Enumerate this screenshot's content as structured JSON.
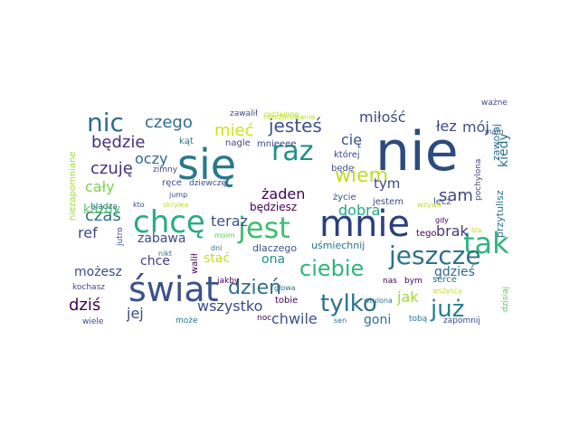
{
  "words": [
    {
      "text": "nie",
      "color": "#2c4b7e"
    },
    {
      "text": "się",
      "color": "#2a788e"
    },
    {
      "text": "mnie",
      "color": "#2b3f80"
    },
    {
      "text": "jest",
      "color": "#40bd72"
    },
    {
      "text": "świat",
      "color": "#3b528b"
    },
    {
      "text": "chcę",
      "color": "#27ad81"
    },
    {
      "text": "tak",
      "color": "#31b57b"
    },
    {
      "text": "jeszcze",
      "color": "#2c738e"
    },
    {
      "text": "raz",
      "color": "#21918c"
    },
    {
      "text": "nic",
      "color": "#2e6d8e"
    },
    {
      "text": "tylko",
      "color": "#2c728e"
    },
    {
      "text": "już",
      "color": "#27808e"
    },
    {
      "text": "ciebie",
      "color": "#31b57b"
    },
    {
      "text": "wiem",
      "color": "#bddf26"
    },
    {
      "text": "dzień",
      "color": "#2d708e"
    },
    {
      "text": "czego",
      "color": "#2e6e8e"
    },
    {
      "text": "jesteś",
      "color": "#3b528b"
    },
    {
      "text": "będzie",
      "color": "#472f7d"
    },
    {
      "text": "czuję",
      "color": "#46327e"
    },
    {
      "text": "mieć",
      "color": "#d0e11c"
    },
    {
      "text": "sam",
      "color": "#3f4788"
    },
    {
      "text": "miłość",
      "color": "#3e4a89"
    },
    {
      "text": "łez",
      "color": "#3f4788"
    },
    {
      "text": "mój",
      "color": "#3b528b"
    },
    {
      "text": "cię",
      "color": "#3b528b"
    },
    {
      "text": "oczy",
      "color": "#2f6b8e"
    },
    {
      "text": "cały",
      "color": "#7ad151"
    },
    {
      "text": "czas",
      "color": "#2c728e"
    },
    {
      "text": "teraz",
      "color": "#3b528b"
    },
    {
      "text": "żaden",
      "color": "#440154"
    },
    {
      "text": "dobra",
      "color": "#22a884"
    },
    {
      "text": "tym",
      "color": "#404688"
    },
    {
      "text": "brak",
      "color": "#443983"
    },
    {
      "text": "kiedy",
      "color": "#2c728e"
    },
    {
      "text": "każdy",
      "color": "#5ec962"
    },
    {
      "text": "ref",
      "color": "#3e4989"
    },
    {
      "text": "zabawa",
      "color": "#3e4989"
    },
    {
      "text": "chce",
      "color": "#433e85"
    },
    {
      "text": "stać",
      "color": "#c2df23"
    },
    {
      "text": "ona",
      "color": "#20928c"
    },
    {
      "text": "możesz",
      "color": "#3e4a89"
    },
    {
      "text": "dziś",
      "color": "#440154"
    },
    {
      "text": "jej",
      "color": "#3e4989"
    },
    {
      "text": "wszystko",
      "color": "#3e4989"
    },
    {
      "text": "chwile",
      "color": "#3b528b"
    },
    {
      "text": "goni",
      "color": "#2c728e"
    },
    {
      "text": "jak",
      "color": "#9fda3a"
    },
    {
      "text": "gdzieś",
      "color": "#31688e"
    },
    {
      "text": "uśmiechnij",
      "color": "#2c728e"
    },
    {
      "text": "dlaczego",
      "color": "#3b528b"
    },
    {
      "text": "będziesz",
      "color": "#440154"
    },
    {
      "text": "zapomnij",
      "color": "#3e4a89"
    },
    {
      "text": "mnieeee",
      "color": "#3e4989"
    },
    {
      "text": "której",
      "color": "#3e4989"
    },
    {
      "text": "będę",
      "color": "#3b528b"
    },
    {
      "text": "życie",
      "color": "#3b528b"
    },
    {
      "text": "jestem",
      "color": "#3e4989"
    },
    {
      "text": "lecz",
      "color": "#3e4989"
    },
    {
      "text": "zawołaj",
      "color": "#2c728e"
    },
    {
      "text": "pochylona",
      "color": "#3e4989"
    },
    {
      "text": "przytulisz",
      "color": "#2c728e"
    },
    {
      "text": "tego",
      "color": "#440154"
    },
    {
      "text": "gdy",
      "color": "#440154"
    },
    {
      "text": "serce",
      "color": "#2c728e"
    },
    {
      "text": "bym",
      "color": "#440154"
    },
    {
      "text": "nas",
      "color": "#440154"
    },
    {
      "text": "tobie",
      "color": "#440154"
    },
    {
      "text": "tobą",
      "color": "#2c728e"
    },
    {
      "text": "noc",
      "color": "#440154"
    },
    {
      "text": "sen",
      "color": "#2c728e"
    },
    {
      "text": "dzisiaj",
      "color": "#5ec962"
    },
    {
      "text": "wszyscy",
      "color": "#bddf26"
    },
    {
      "text": "wtulona",
      "color": "#2c728e"
    },
    {
      "text": "głowa",
      "color": "#2c728e"
    },
    {
      "text": "jakby",
      "color": "#440154"
    },
    {
      "text": "walił",
      "color": "#440154"
    },
    {
      "text": "moim",
      "color": "#5ec962"
    },
    {
      "text": "dni",
      "color": "#2c728e"
    },
    {
      "text": "nikt",
      "color": "#2c728e"
    },
    {
      "text": "może",
      "color": "#2c728e"
    },
    {
      "text": "wiele",
      "color": "#3e4989"
    },
    {
      "text": "kochasz",
      "color": "#3e4989"
    },
    {
      "text": "jutro",
      "color": "#3e4989"
    },
    {
      "text": "kto",
      "color": "#3e4989"
    },
    {
      "text": "skrywa",
      "color": "#bddf26"
    },
    {
      "text": "wzywa",
      "color": "#bddf26"
    },
    {
      "text": "łza",
      "color": "#bddf26"
    },
    {
      "text": "ważne",
      "color": "#3e4989"
    },
    {
      "text": "mam",
      "color": "#3e4989"
    },
    {
      "text": "zawalił",
      "color": "#3e4989"
    },
    {
      "text": "rozżalone",
      "color": "#bddf26"
    },
    {
      "text": "rozczarowanie",
      "color": "#bddf26"
    },
    {
      "text": "kąt",
      "color": "#2c728e"
    },
    {
      "text": "nagle",
      "color": "#3e4989"
    },
    {
      "text": "ręce",
      "color": "#3e4989"
    },
    {
      "text": "dziewczę",
      "color": "#3e4989"
    },
    {
      "text": "jump",
      "color": "#3e4989"
    },
    {
      "text": "zimny",
      "color": "#3e4989"
    },
    {
      "text": "błądzą",
      "color": "#2c728e"
    },
    {
      "text": "niezapomniane",
      "color": "#9fda3a"
    }
  ]
}
